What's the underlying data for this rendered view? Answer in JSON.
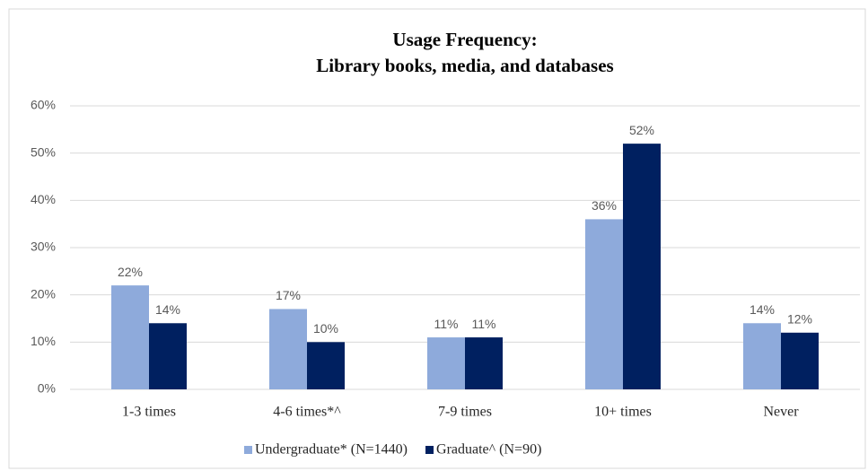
{
  "chart_data": {
    "type": "bar",
    "title": "Usage Frequency:",
    "subtitle": "Library books, media, and databases",
    "categories": [
      "1-3 times",
      "4-6 times*^",
      "7-9 times",
      "10+ times",
      "Never"
    ],
    "series": [
      {
        "name": "Undergraduate* (N=1440)",
        "color": "#8eaadb",
        "values": [
          22,
          17,
          11,
          36,
          14
        ],
        "value_labels": [
          "22%",
          "17%",
          "11%",
          "36%",
          "14%"
        ]
      },
      {
        "name": "Graduate^ (N=90)",
        "color": "#002060",
        "values": [
          14,
          10,
          11,
          52,
          12
        ],
        "value_labels": [
          "14%",
          "10%",
          "11%",
          "52%",
          "12%"
        ]
      }
    ],
    "ylim": [
      0,
      60
    ],
    "yticks": [
      {
        "value": 0,
        "label": "0%"
      },
      {
        "value": 10,
        "label": "10%"
      },
      {
        "value": 20,
        "label": "20%"
      },
      {
        "value": 30,
        "label": "30%"
      },
      {
        "value": 40,
        "label": "40%"
      },
      {
        "value": 50,
        "label": "50%"
      },
      {
        "value": 60,
        "label": "60%"
      }
    ],
    "grid": true,
    "legend": "bottom"
  }
}
